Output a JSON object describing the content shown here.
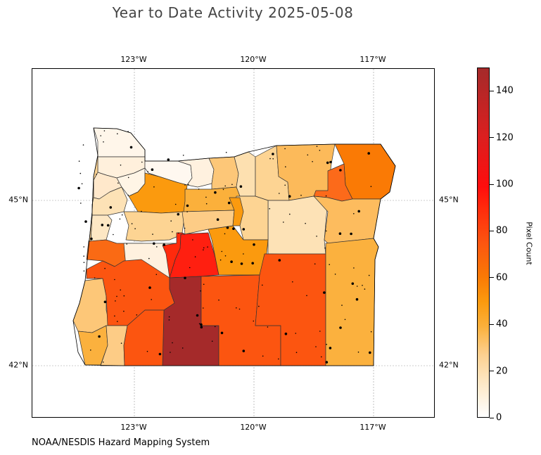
{
  "title": "Year to Date Activity 2025-05-08",
  "credit": "NOAA/NESDIS Hazard Mapping System",
  "map": {
    "lon_ticks": [
      "123°W",
      "120°W",
      "117°W"
    ],
    "lat_ticks": [
      "45°N",
      "42°N"
    ],
    "gridlines": true
  },
  "colorbar": {
    "label": "Pixel Count",
    "ticks": [
      "0",
      "20",
      "40",
      "60",
      "80",
      "100",
      "120",
      "140"
    ],
    "range": [
      0,
      150
    ],
    "colors": [
      "#ffffff",
      "#fdd08f",
      "#fb9a0e",
      "#fc5510",
      "#ff0d0d",
      "#a52a2a"
    ]
  },
  "chart_data": {
    "type": "heatmap",
    "title": "Year to Date Activity 2025-05-08",
    "colorbar_label": "Pixel Count",
    "colorbar_range": [
      0,
      150
    ],
    "regions": [
      {
        "color": "#fff6ea"
      },
      {
        "color": "#fff0dc"
      },
      {
        "color": "#ffe8cb"
      },
      {
        "color": "#fde2b6"
      },
      {
        "color": "#fde7c4"
      },
      {
        "color": "#fff5e6"
      },
      {
        "color": "#fff8f0"
      },
      {
        "color": "#fff1df"
      },
      {
        "color": "#fdc778"
      },
      {
        "color": "#fde0b0"
      },
      {
        "color": "#fdd493"
      },
      {
        "color": "#fcba5a"
      },
      {
        "color": "#fb9a0e"
      },
      {
        "color": "#fbb03b"
      },
      {
        "color": "#fa7a05"
      },
      {
        "color": "#fc6a1a"
      },
      {
        "color": "#fde2b6"
      },
      {
        "color": "#fdd493"
      },
      {
        "color": "#fa6a14"
      },
      {
        "color": "#fdbc5e"
      },
      {
        "color": "#fdd493"
      },
      {
        "color": "#ff1f10"
      },
      {
        "color": "#fb9a0e"
      },
      {
        "color": "#fdcc86"
      },
      {
        "color": "#fff1df"
      },
      {
        "color": "#fdc778"
      },
      {
        "color": "#fbb13e"
      },
      {
        "color": "#fc5510"
      },
      {
        "color": "#a52a2a"
      },
      {
        "color": "#fc5510"
      },
      {
        "color": "#fc5510"
      },
      {
        "color": "#fbb13e"
      },
      {
        "color": "#fdcc86"
      },
      {
        "color": "#fc5510"
      },
      {
        "color": "#ff2a0c"
      },
      {
        "color": "#fdd493"
      },
      {
        "color": "#fb9a0e"
      }
    ]
  }
}
